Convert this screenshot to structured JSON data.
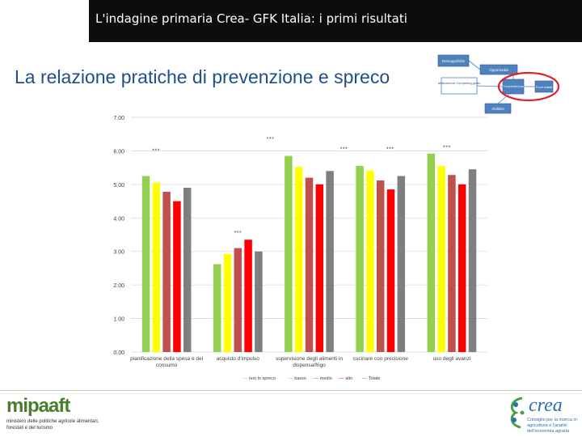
{
  "header": {
    "title": "L'indagine primaria Crea- GFK Italia: i primi risultati"
  },
  "section_title": "La relazione pratiche di prevenzione e spreco",
  "diagram": {
    "boxes": [
      "Demografiche",
      "Opportunità",
      "Motivazione Competing goals",
      "Food Household practices",
      "Food waste",
      "Abilities"
    ],
    "highlight_color": "#e0202a"
  },
  "colors": {
    "header_bg": "#0d0d0d",
    "title_blue": "#1f4e8c",
    "series": [
      "#92d050",
      "#ffff00",
      "#c0504d",
      "#ff0000",
      "#7f7f7f"
    ]
  },
  "chart_data": {
    "type": "bar",
    "categories": [
      "pianificazione della spesa e del consumo",
      "acquisto d'impulso",
      "supervisione degli alimenti in dispensa/frigo",
      "cucinare con precisione",
      "uso degli avanzi"
    ],
    "category_lines": [
      [
        "pianificazione della spesa e del",
        "consumo"
      ],
      [
        "acquisto d'impulso"
      ],
      [
        "supervisione degli alimenti in",
        "dispensa/frigo"
      ],
      [
        "cucinare con precisione"
      ],
      [
        "uso degli avanzi"
      ]
    ],
    "series": [
      {
        "name": "non lo spreco",
        "values": [
          5.25,
          2.62,
          5.85,
          5.55,
          5.92
        ]
      },
      {
        "name": "basso",
        "values": [
          5.05,
          2.92,
          5.52,
          5.42,
          5.55
        ]
      },
      {
        "name": "medio",
        "values": [
          4.78,
          3.1,
          5.2,
          5.12,
          5.28
        ]
      },
      {
        "name": "alto",
        "values": [
          4.5,
          3.35,
          5.0,
          4.85,
          5.0
        ]
      },
      {
        "name": "Totale",
        "values": [
          4.9,
          3.0,
          5.4,
          5.25,
          5.45
        ]
      }
    ],
    "significance": [
      "***",
      "***",
      "***",
      "***",
      "***",
      "***"
    ],
    "significance_categories": [
      0,
      1,
      2,
      2,
      3,
      4
    ],
    "significance_levels": [
      5.95,
      3.5,
      6.3,
      6.0,
      6.05
    ],
    "yticks": [
      "0.00",
      "1.00",
      "2.00",
      "3.00",
      "4.00",
      "5.00",
      "6.00",
      "7.00"
    ],
    "ylim": [
      0,
      7
    ],
    "grid": true,
    "legend_position": "bottom",
    "xlabel": "",
    "ylabel": ""
  },
  "footer": {
    "left_logo": "mipaaft",
    "left_sub": "ministero delle politiche agricole alimentari, forestali e del turismo",
    "right_logo": "crea",
    "right_sub": "Consiglio per la ricerca in agricoltura e l'analisi dell'economia agraria"
  }
}
